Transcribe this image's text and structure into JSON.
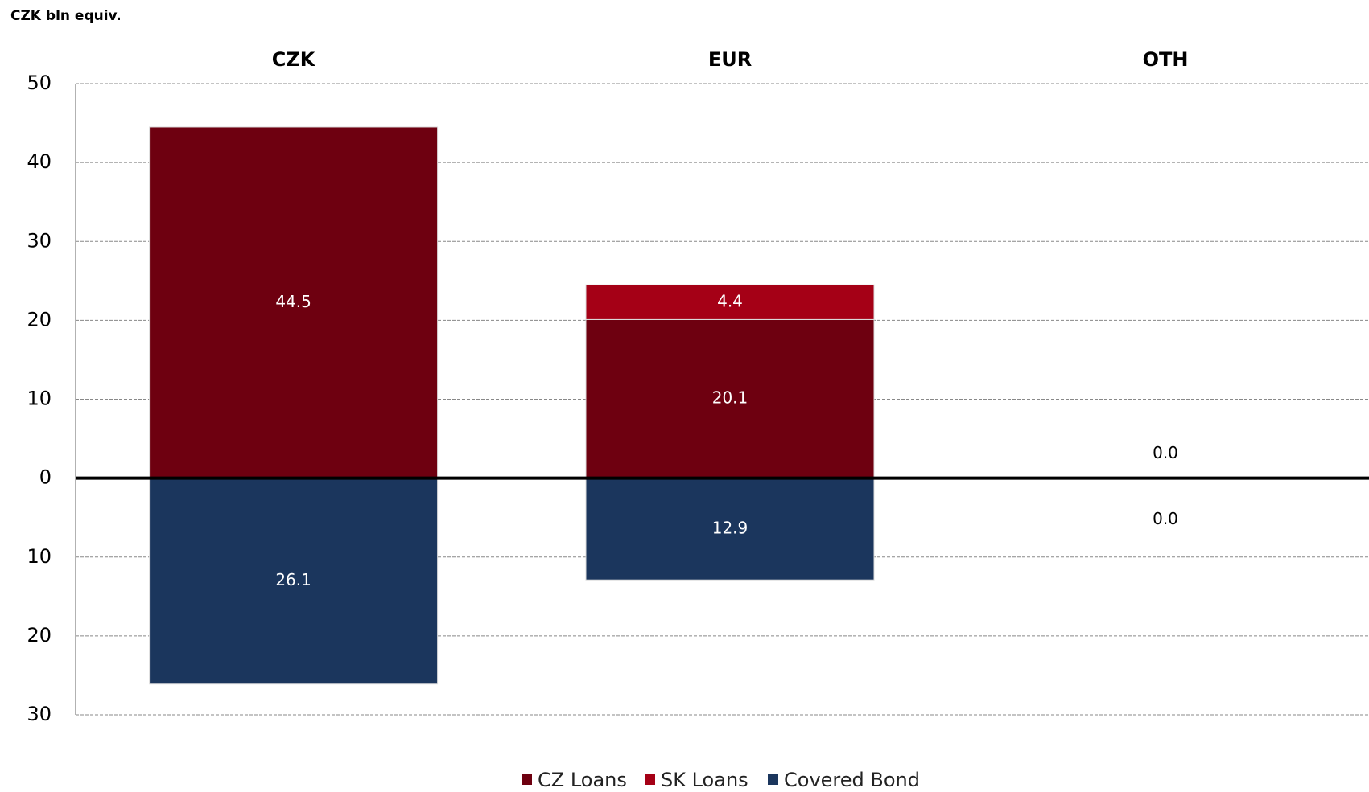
{
  "chart_data": {
    "type": "diverging-stacked-bar",
    "title": "CZK bln equiv.",
    "categories": [
      "CZK",
      "EUR",
      "OTH"
    ],
    "series": [
      {
        "name": "CZ Loans",
        "color": "#6e0010",
        "values": [
          44.5,
          20.1,
          0.0
        ],
        "value_labels": [
          "44.5",
          "20.1",
          "0.0"
        ]
      },
      {
        "name": "SK Loans",
        "color": "#a50016",
        "values": [
          null,
          4.4,
          null
        ],
        "value_labels": [
          null,
          "4.4",
          null
        ]
      },
      {
        "name": "Covered Bond",
        "color": "#1b365d",
        "values": [
          -26.1,
          -12.9,
          0.0
        ],
        "value_labels": [
          "26.1",
          "12.9",
          "0.0"
        ]
      }
    ],
    "ylim": [
      -30,
      50
    ],
    "yticks": [
      {
        "value": -30,
        "label": "30"
      },
      {
        "value": -20,
        "label": "20"
      },
      {
        "value": -10,
        "label": "10"
      },
      0,
      10,
      20,
      30,
      40,
      50
    ],
    "grid": true,
    "legend": "bottom"
  }
}
